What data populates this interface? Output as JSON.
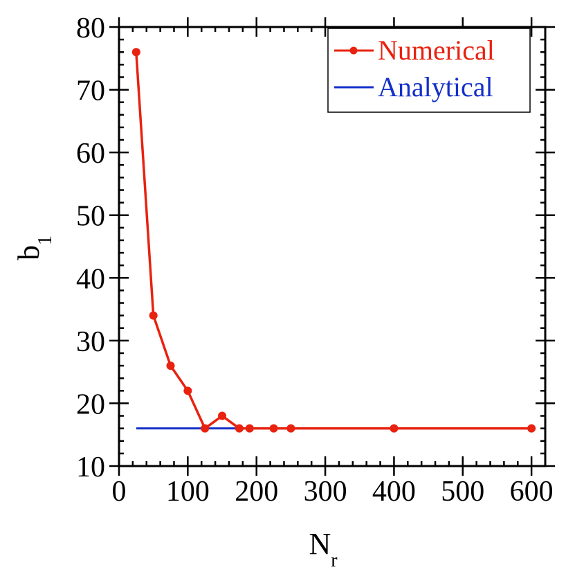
{
  "chart_data": {
    "type": "line",
    "title": "",
    "xlabel": "N",
    "xlabel_sub": "r",
    "ylabel": "b",
    "ylabel_sub": "1",
    "xlim": [
      0,
      620
    ],
    "ylim": [
      10,
      80
    ],
    "x_ticks": [
      0,
      100,
      200,
      300,
      400,
      500,
      600
    ],
    "y_ticks": [
      10,
      20,
      30,
      40,
      50,
      60,
      70,
      80
    ],
    "x_tick_labels": [
      "0",
      "100",
      "200",
      "300",
      "400",
      "500",
      "600"
    ],
    "y_tick_labels": [
      "10",
      "20",
      "30",
      "40",
      "50",
      "60",
      "70",
      "80"
    ],
    "grid": false,
    "legend_position": "top-right",
    "series": [
      {
        "name": "Numerical",
        "color": "#e8220f",
        "style": "line-with-markers",
        "x": [
          25,
          50,
          75,
          100,
          125,
          150,
          175,
          190,
          225,
          250,
          400,
          600
        ],
        "y": [
          76,
          34,
          26,
          22,
          16,
          18,
          16,
          16,
          16,
          16,
          16,
          16
        ]
      },
      {
        "name": "Analytical",
        "color": "#1430c8",
        "style": "line",
        "x": [
          25,
          600
        ],
        "y": [
          16,
          16
        ]
      }
    ]
  }
}
